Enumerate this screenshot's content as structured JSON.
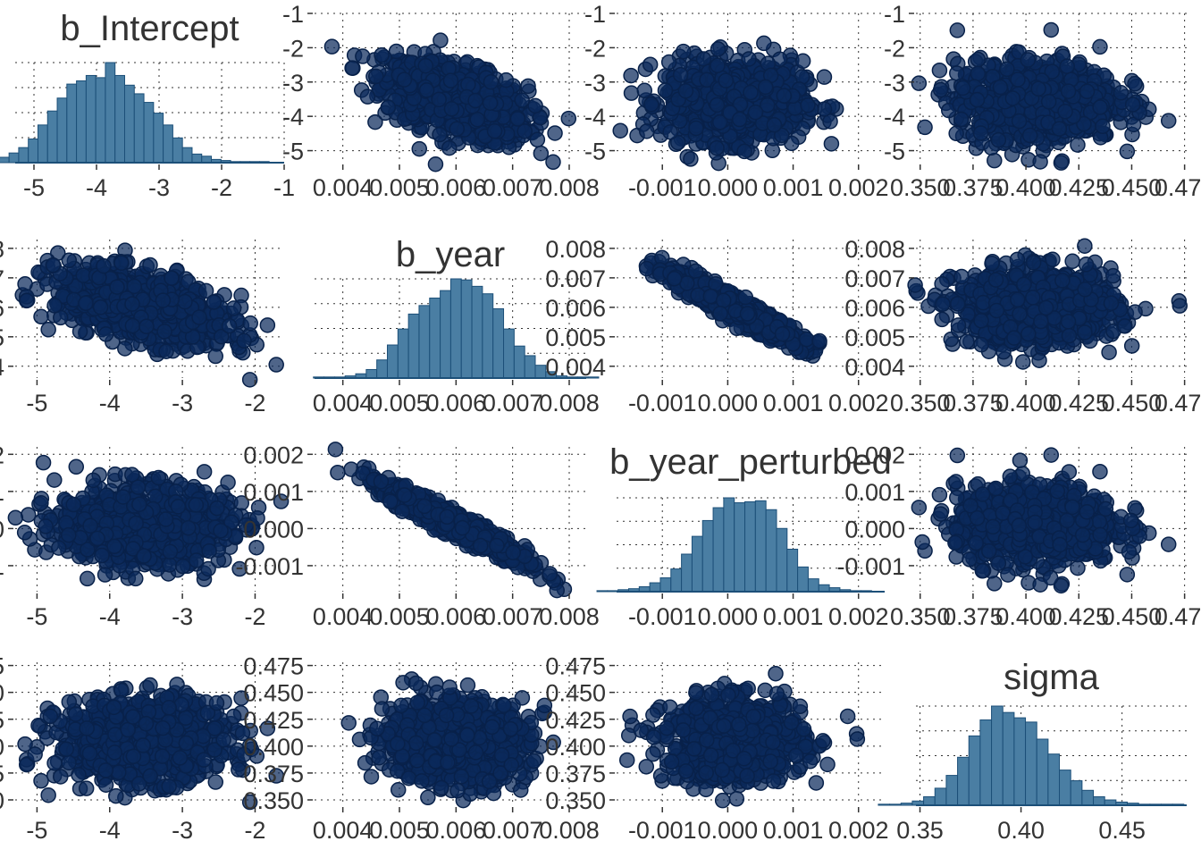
{
  "colors": {
    "point_fill": "#0b2a5c",
    "point_stroke": "#08214a",
    "hist_fill": "#4a7ea3",
    "hist_stroke": "#1c4f78",
    "grid": "#333333",
    "text": "#333333"
  },
  "chart_data": {
    "type": "pairs",
    "variables": [
      "b_Intercept",
      "b_year",
      "b_year_perturbed",
      "sigma"
    ],
    "axes": {
      "b_Intercept": {
        "ticks": [
          -5,
          -4,
          -3,
          -2,
          -1
        ],
        "tick_labels": [
          "-5",
          "-4",
          "-3",
          "-2",
          "-1"
        ],
        "xlim_hist": [
          -5.3,
          -1.0
        ],
        "xlim_scatter": [
          -5.3,
          -1.6
        ],
        "ylim": [
          -5.35,
          -1.0
        ],
        "mean": -3.55,
        "sd": 0.55
      },
      "b_year": {
        "ticks": [
          0.004,
          0.005,
          0.006,
          0.007,
          0.008
        ],
        "tick_labels": [
          "0.004",
          "0.005",
          "0.006",
          "0.007",
          "0.008"
        ],
        "xlim_hist": [
          0.0035,
          0.0083
        ],
        "ylim": [
          0.0036,
          0.0083
        ],
        "mean": 0.006,
        "sd": 0.0006
      },
      "b_year_perturbed": {
        "ticks": [
          -0.001,
          0.0,
          0.001,
          0.002
        ],
        "tick_labels": [
          "-0.001",
          "0.000",
          "0.001",
          "0.002"
        ],
        "xlim_hist": [
          -0.0017,
          0.0024
        ],
        "ylim": [
          -0.0017,
          0.0022
        ],
        "mean": 0.0001,
        "sd": 0.0005
      },
      "sigma": {
        "ticks": [
          0.35,
          0.375,
          0.4,
          0.425,
          0.45,
          0.475
        ],
        "tick_labels": [
          "0.350",
          "0.375",
          "0.400",
          "0.425",
          "0.450",
          "0.475"
        ],
        "hist_ticks": [
          0.35,
          0.4,
          0.45
        ],
        "hist_tick_labels": [
          "0.35",
          "0.40",
          "0.45"
        ],
        "xlim_hist": [
          0.348,
          0.482
        ],
        "xlim_scatter": [
          0.348,
          0.476
        ],
        "ylim": [
          0.345,
          0.478
        ],
        "mean": 0.405,
        "sd": 0.018
      }
    },
    "correlations": [
      {
        "x": "b_year",
        "y": "b_Intercept",
        "r": -0.5
      },
      {
        "x": "b_year_perturbed",
        "y": "b_Intercept",
        "r": 0.0
      },
      {
        "x": "sigma",
        "y": "b_Intercept",
        "r": 0.0
      },
      {
        "x": "b_year_perturbed",
        "y": "b_year",
        "r": -0.95
      },
      {
        "x": "sigma",
        "y": "b_year",
        "r": 0.0
      },
      {
        "x": "sigma",
        "y": "b_year_perturbed",
        "r": 0.0
      }
    ],
    "histograms": {
      "b_Intercept": [
        1,
        2,
        5,
        9,
        14,
        22,
        35,
        48,
        60,
        73,
        76,
        81,
        79,
        93,
        81,
        72,
        64,
        56,
        46,
        35,
        23,
        14,
        8,
        6,
        3,
        2,
        1,
        1,
        1,
        1
      ],
      "b_year": [
        1,
        1,
        1,
        2,
        4,
        8,
        17,
        31,
        46,
        60,
        68,
        75,
        82,
        93,
        92,
        86,
        79,
        65,
        46,
        30,
        21,
        12,
        6,
        2,
        1,
        1,
        1
      ],
      "b_year_perturbed": [
        1,
        1,
        2,
        3,
        5,
        9,
        14,
        23,
        38,
        56,
        72,
        85,
        95,
        90,
        91,
        92,
        83,
        64,
        43,
        25,
        13,
        7,
        4,
        2,
        1,
        1
      ],
      "sigma": [
        1,
        1,
        2,
        4,
        8,
        16,
        28,
        45,
        65,
        80,
        93,
        87,
        82,
        78,
        62,
        48,
        33,
        23,
        14,
        8,
        5,
        3,
        2,
        1,
        1,
        1,
        1
      ]
    }
  }
}
